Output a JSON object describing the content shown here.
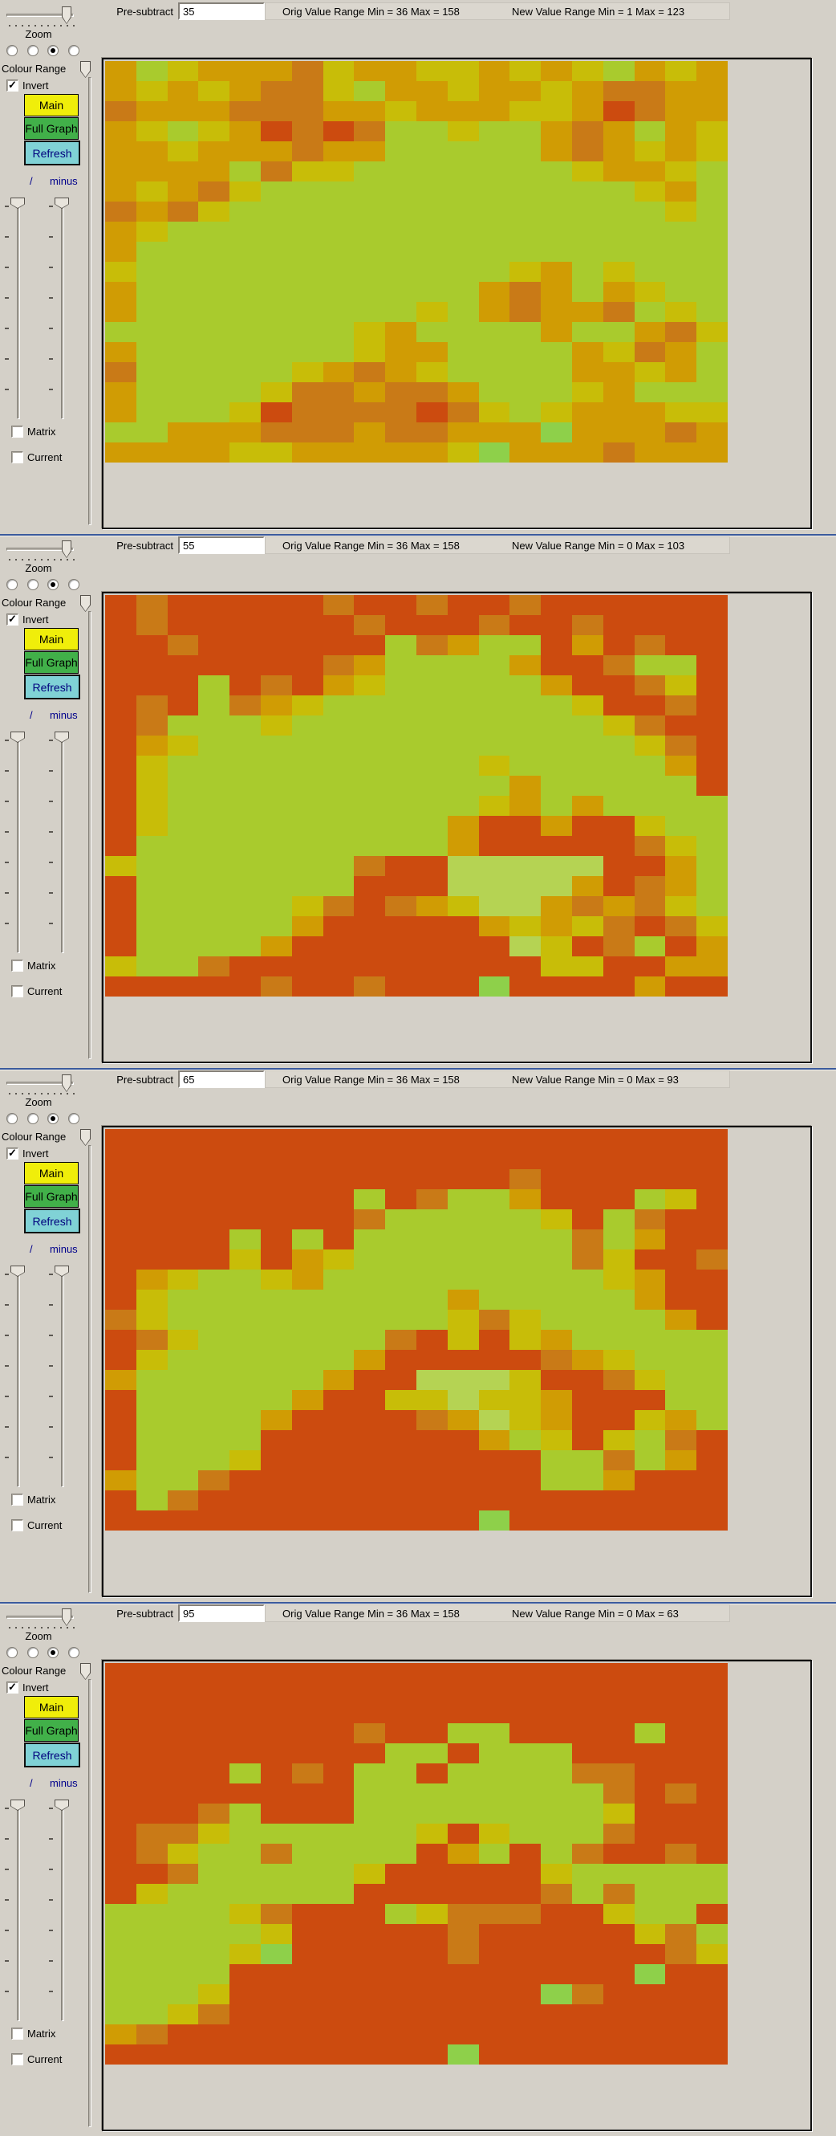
{
  "palette": {
    "G": "#a9cb2d",
    "g": "#8ed04a",
    "L": "#b5d353",
    "Y": "#c8bd08",
    "O": "#d09c04",
    "R": "#c97a17",
    "D": "#cc4b0f"
  },
  "accent_colors": {
    "separator_blue": "#3a5a9c",
    "main_button_bg": "#f0ee0a",
    "full_graph_button_bg": "#41b049",
    "refresh_button_bg": "#80d2d6",
    "refresh_text": "#00007d",
    "minus_text": "#00008b"
  },
  "ui": {
    "zoom_label": "Zoom",
    "colour_range_label": "Colour Range",
    "invert_label": "Invert",
    "main_button": "Main",
    "full_graph_button": "Full Graph",
    "refresh_button": "Refresh",
    "slash_label": "/",
    "minus_label": "minus",
    "matrix_label": "Matrix",
    "current_label": "Current",
    "pre_subtract_label": "Pre-subtract"
  },
  "panels": [
    {
      "pre_subtract_value": "35",
      "orig_range": "Orig Value Range Min = 36 Max = 158",
      "new_range": "New Value Range Min = 1 Max = 123",
      "grid": [
        "OGYOOORYOOYYOYOYGOYO",
        "OYOYORRYGOOYOOYORROO",
        "ROOORRROOYOOOYYODROO",
        "OYGYODRDRGGYGGOROGOY",
        "OOYOOOROOGGGGGOROYOY",
        "OOOOGRYYGGGGGGGYOOYG",
        "OYORYGGGGGGGGGGGGYOG",
        "RORYGGGGGGGGGGGGGGYG",
        "OYGGGGGGGGGGGGGGGGGG",
        "OGGGGGGGGGGGGGGGGGGG",
        "YGGGGGGGGGGGGYOGYGGG",
        "OGGGGGGGGGGGOROGOYGG",
        "OGGGGGGGGGYGOROORGYG",
        "GGGGGGGGYOGGGGOGGORY",
        "OGGGGGGGYOOGGGGOYROG",
        "RGGGGGYOROYGGGGOOYOG",
        "OGGGGYRRORROGGGYOGGG",
        "OGGGYDRRRRDRYGYOOOYY",
        "GGOOORRRORROOOgOOORO",
        "OOOOYYOOOOOYgOOOROOO"
      ]
    },
    {
      "pre_subtract_value": "55",
      "orig_range": "Orig Value Range Min = 36 Max = 158",
      "new_range": "New Value Range Min = 0 Max = 103",
      "grid": [
        "DRDDDDDRDDRDDRDDDDDD",
        "DRDDDDDDRDDDRDDRDDDD",
        "DDRDDDDDDGROGGDODRDD",
        "DDDDDDDROGGGGODDRGGD",
        "DDDGDRDOYGGGGGODDRYD",
        "DRDGROYGGGGGGGGYDDRD",
        "DRGGGYGGGGGGGGGGYRDD",
        "DOYGGGGGGGGGGGGGGYRD",
        "DYGGGGGGGGGGYGGGGGOD",
        "DYGGGGGGGGGGGOGGGGGD",
        "DYGGGGGGGGGGYOGOGGGG",
        "DYGGGGGGGGGODDODDYGG",
        "DGGGGGGGGGGODDDDDRYG",
        "YGGGGGGGRDDLLLLLDDOG",
        "DGGGGGGGDDDLLLLODROG",
        "DGGGGGYRDROYLLORORYG",
        "DGGGGGODDDDDOYOYRDRY",
        "DGGGGODDDDDDDLYDRGDO",
        "YGGRDDDDDDDDDDYYDDOO",
        "DDDDDRDDRDDDgDDDDODD"
      ]
    },
    {
      "pre_subtract_value": "65",
      "orig_range": "Orig Value Range Min = 36 Max = 158",
      "new_range": "New Value Range Min = 0 Max = 93",
      "grid": [
        "DDDDDDDDDDDDDDDDDDDD",
        "DDDDDDDDDDDDDDDDDDDD",
        "DDDDDDDDDDDDDRDDDDDD",
        "DDDDDDDDGDRGGODDDGYD",
        "DDDDDDDDRGGGGGYDGRDD",
        "DDDDGDGDGGGGGGGRGODD",
        "DDDDYDOYGGGGGGGRYDDR",
        "DOYGGYOGGGGGGGGGYODD",
        "DYGGGGGGGGGOGGGGGODD",
        "RYGGGGGGGGGYRYGGGGOD",
        "DRYGGGGGGRDYDYOGGGGG",
        "DYGGGGGGODDDDDROYGGG",
        "OGGGGGGODDLLLYDDRYGG",
        "DGGGGGODDYYLYYODDDGG",
        "DGGGGODDDDROLYODDYOG",
        "DGGGGDDDDDDDOGYDYGRD",
        "DGGGYDDDDDDDDDGGRGOD",
        "OGGRDDDDDDDDDDGGODDD",
        "DGRDDDDDDDDDDDDDDDDD",
        "DDDDDDDDDDDDgDDDDDDD"
      ]
    },
    {
      "pre_subtract_value": "95",
      "orig_range": "Orig Value Range Min = 36 Max = 158",
      "new_range": "New Value Range Min = 0 Max = 63",
      "grid": [
        "DDDDDDDDDDDDDDDDDDDD",
        "DDDDDDDDDDDDDDDDDDDD",
        "DDDDDDDDDDDDDDDDDDDD",
        "DDDDDDDDRDDGGDDDDGDD",
        "DDDDDDDDDGGDGGGDDDDD",
        "DDDDGDRDGGDGGGGRRDDD",
        "DDDDDDDDGGGGGGGGRDRD",
        "DDDRGDDDGGGGGGGGYDDD",
        "DRRYGGGGGGYDYGGGRDDD",
        "DRYGGRGGGGDOGDGRDDRD",
        "DDRGGGGGYDDDDDYGGGGG",
        "DYGGGGGGDDDDDDRGRGGG",
        "GGGGYRDDDGYRRRDDYGGD",
        "GGGGGYDDDDDRDDDDDYRG",
        "GGGGYgDDDDDRDDDDDDRY",
        "GGGGDDDDDDDDDDDDDgDD",
        "GGGYDDDDDDDDDDgRDDDD",
        "GGYRDDDDDDDDDDDDDDDD",
        "ORDDDDDDDDDDDDDDDDDD",
        "DDDDDDDDDDDgDDDDDDDD"
      ]
    }
  ]
}
